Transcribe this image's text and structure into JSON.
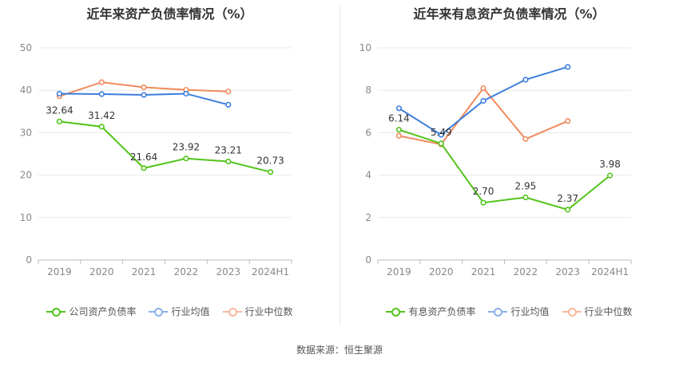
{
  "source_label": "数据来源：恒生聚源",
  "chart_data": [
    {
      "type": "line",
      "title": "近年来资产负债率情况（%）",
      "categories": [
        "2019",
        "2020",
        "2021",
        "2022",
        "2023",
        "2024H1"
      ],
      "ylim": [
        0,
        50
      ],
      "yticks": [
        0,
        10,
        20,
        30,
        40,
        50
      ],
      "grid": true,
      "legend_position": "bottom",
      "series": [
        {
          "name": "公司资产负债率",
          "color": "#52c41a",
          "values": [
            32.64,
            31.42,
            21.64,
            23.92,
            23.21,
            20.73
          ],
          "show_labels": true
        },
        {
          "name": "行业均值",
          "color": "#3b7ddd",
          "values": [
            39.2,
            39.1,
            38.9,
            39.2,
            36.6,
            null
          ],
          "show_labels": false
        },
        {
          "name": "行业中位数",
          "color": "#f08a5d",
          "values": [
            38.6,
            41.9,
            40.7,
            40.1,
            39.7,
            null
          ],
          "show_labels": false
        }
      ]
    },
    {
      "type": "line",
      "title": "近年来有息资产负债率情况（%）",
      "categories": [
        "2019",
        "2020",
        "2021",
        "2022",
        "2023",
        "2024H1"
      ],
      "ylim": [
        0,
        10
      ],
      "yticks": [
        0,
        2,
        4,
        6,
        8,
        10
      ],
      "grid": true,
      "legend_position": "bottom",
      "series": [
        {
          "name": "有息资产负债率",
          "color": "#52c41a",
          "values": [
            6.14,
            5.49,
            2.7,
            2.95,
            2.37,
            3.98
          ],
          "show_labels": true
        },
        {
          "name": "行业均值",
          "color": "#3b7ddd",
          "values": [
            7.15,
            5.9,
            7.5,
            8.5,
            9.1,
            null
          ],
          "show_labels": false
        },
        {
          "name": "行业中位数",
          "color": "#f08a5d",
          "values": [
            5.85,
            5.45,
            8.1,
            5.7,
            6.55,
            null
          ],
          "show_labels": false
        }
      ]
    }
  ]
}
